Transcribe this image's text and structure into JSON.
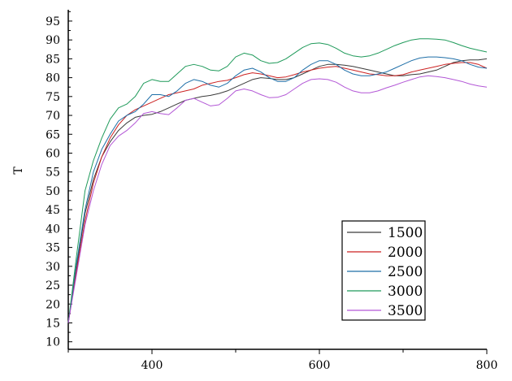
{
  "chart_data": {
    "type": "line",
    "title": "",
    "xlabel": "",
    "ylabel": "T",
    "xlim": [
      300,
      800
    ],
    "ylim": [
      8,
      98
    ],
    "x_ticks": [
      400,
      600,
      800
    ],
    "y_ticks": [
      10,
      15,
      20,
      25,
      30,
      35,
      40,
      45,
      50,
      55,
      60,
      65,
      70,
      75,
      80,
      85,
      90,
      95
    ],
    "grid": false,
    "legend_position": "bottom-right",
    "series": [
      {
        "name": "1500",
        "color": "#3a3a3a",
        "points": [
          [
            300,
            15
          ],
          [
            310,
            30
          ],
          [
            320,
            44
          ],
          [
            330,
            53
          ],
          [
            340,
            59
          ],
          [
            350,
            63
          ],
          [
            360,
            66
          ],
          [
            370,
            68
          ],
          [
            380,
            69.5
          ],
          [
            390,
            70
          ],
          [
            400,
            70.3
          ],
          [
            410,
            71
          ],
          [
            420,
            72
          ],
          [
            430,
            73
          ],
          [
            440,
            74
          ],
          [
            450,
            74.5
          ],
          [
            460,
            75
          ],
          [
            470,
            75.3
          ],
          [
            480,
            75.8
          ],
          [
            490,
            76.5
          ],
          [
            500,
            77.5
          ],
          [
            510,
            78.5
          ],
          [
            520,
            79.5
          ],
          [
            530,
            80
          ],
          [
            540,
            79.8
          ],
          [
            550,
            79.5
          ],
          [
            560,
            79.5
          ],
          [
            570,
            80
          ],
          [
            580,
            81
          ],
          [
            590,
            82
          ],
          [
            600,
            83
          ],
          [
            610,
            83.5
          ],
          [
            620,
            83.5
          ],
          [
            630,
            83.3
          ],
          [
            640,
            83
          ],
          [
            650,
            82.5
          ],
          [
            660,
            82
          ],
          [
            670,
            81.5
          ],
          [
            680,
            81
          ],
          [
            690,
            80.5
          ],
          [
            700,
            80.5
          ],
          [
            710,
            80.8
          ],
          [
            720,
            81
          ],
          [
            730,
            81.5
          ],
          [
            740,
            82
          ],
          [
            750,
            83
          ],
          [
            760,
            84
          ],
          [
            770,
            84.5
          ],
          [
            780,
            84.7
          ],
          [
            790,
            84.7
          ],
          [
            800,
            85
          ]
        ]
      },
      {
        "name": "2000",
        "color": "#cc2222",
        "points": [
          [
            300,
            15
          ],
          [
            310,
            29
          ],
          [
            320,
            42
          ],
          [
            330,
            52
          ],
          [
            340,
            59
          ],
          [
            350,
            64
          ],
          [
            360,
            67.5
          ],
          [
            370,
            70
          ],
          [
            380,
            71.5
          ],
          [
            390,
            72.5
          ],
          [
            400,
            73.5
          ],
          [
            410,
            74.5
          ],
          [
            420,
            75.5
          ],
          [
            430,
            76
          ],
          [
            440,
            76.5
          ],
          [
            450,
            77
          ],
          [
            460,
            78
          ],
          [
            470,
            78.5
          ],
          [
            480,
            79
          ],
          [
            490,
            79.3
          ],
          [
            500,
            80
          ],
          [
            510,
            80.8
          ],
          [
            520,
            81.3
          ],
          [
            530,
            81
          ],
          [
            540,
            80.5
          ],
          [
            550,
            80
          ],
          [
            560,
            80.2
          ],
          [
            570,
            80.8
          ],
          [
            580,
            81.5
          ],
          [
            590,
            82
          ],
          [
            600,
            82.5
          ],
          [
            610,
            82.8
          ],
          [
            620,
            83
          ],
          [
            630,
            82.5
          ],
          [
            640,
            82
          ],
          [
            650,
            81.5
          ],
          [
            660,
            81
          ],
          [
            670,
            80.8
          ],
          [
            680,
            80.5
          ],
          [
            690,
            80.5
          ],
          [
            700,
            80.8
          ],
          [
            710,
            81.5
          ],
          [
            720,
            82
          ],
          [
            730,
            82.5
          ],
          [
            740,
            83
          ],
          [
            750,
            83.5
          ],
          [
            760,
            83.8
          ],
          [
            770,
            84
          ],
          [
            780,
            84
          ],
          [
            790,
            83.5
          ],
          [
            800,
            82.5
          ]
        ]
      },
      {
        "name": "2500",
        "color": "#1f6fa8",
        "points": [
          [
            300,
            15
          ],
          [
            310,
            31
          ],
          [
            320,
            45
          ],
          [
            330,
            55
          ],
          [
            340,
            61
          ],
          [
            350,
            65
          ],
          [
            360,
            68.5
          ],
          [
            370,
            70
          ],
          [
            380,
            71
          ],
          [
            390,
            73
          ],
          [
            400,
            75.5
          ],
          [
            410,
            75.5
          ],
          [
            420,
            75
          ],
          [
            430,
            76.5
          ],
          [
            440,
            78.5
          ],
          [
            450,
            79.5
          ],
          [
            460,
            79
          ],
          [
            470,
            78
          ],
          [
            480,
            77.5
          ],
          [
            490,
            78.5
          ],
          [
            500,
            80.5
          ],
          [
            510,
            82
          ],
          [
            520,
            82.5
          ],
          [
            530,
            81.5
          ],
          [
            540,
            80
          ],
          [
            550,
            79
          ],
          [
            560,
            79
          ],
          [
            570,
            80
          ],
          [
            580,
            82
          ],
          [
            590,
            83.5
          ],
          [
            600,
            84.5
          ],
          [
            610,
            84.5
          ],
          [
            620,
            83.5
          ],
          [
            630,
            82
          ],
          [
            640,
            81
          ],
          [
            650,
            80.5
          ],
          [
            660,
            80.5
          ],
          [
            670,
            81
          ],
          [
            680,
            81.5
          ],
          [
            690,
            82.5
          ],
          [
            700,
            83.5
          ],
          [
            710,
            84.5
          ],
          [
            720,
            85.2
          ],
          [
            730,
            85.5
          ],
          [
            740,
            85.5
          ],
          [
            750,
            85.3
          ],
          [
            760,
            85
          ],
          [
            770,
            84.5
          ],
          [
            780,
            83.5
          ],
          [
            790,
            82.8
          ],
          [
            800,
            82.5
          ]
        ]
      },
      {
        "name": "3000",
        "color": "#1f9a5a",
        "points": [
          [
            300,
            15
          ],
          [
            310,
            33
          ],
          [
            320,
            50
          ],
          [
            330,
            58
          ],
          [
            340,
            64
          ],
          [
            350,
            69
          ],
          [
            360,
            72
          ],
          [
            370,
            73
          ],
          [
            380,
            75
          ],
          [
            390,
            78.5
          ],
          [
            400,
            79.5
          ],
          [
            410,
            79
          ],
          [
            420,
            79
          ],
          [
            430,
            81
          ],
          [
            440,
            83
          ],
          [
            450,
            83.5
          ],
          [
            460,
            83
          ],
          [
            470,
            82
          ],
          [
            480,
            81.8
          ],
          [
            490,
            83
          ],
          [
            500,
            85.5
          ],
          [
            510,
            86.5
          ],
          [
            520,
            86
          ],
          [
            530,
            84.5
          ],
          [
            540,
            83.8
          ],
          [
            550,
            84
          ],
          [
            560,
            85
          ],
          [
            570,
            86.5
          ],
          [
            580,
            88
          ],
          [
            590,
            89
          ],
          [
            600,
            89.2
          ],
          [
            610,
            88.8
          ],
          [
            620,
            87.8
          ],
          [
            630,
            86.5
          ],
          [
            640,
            85.8
          ],
          [
            650,
            85.5
          ],
          [
            660,
            85.8
          ],
          [
            670,
            86.5
          ],
          [
            680,
            87.5
          ],
          [
            690,
            88.5
          ],
          [
            700,
            89.3
          ],
          [
            710,
            90
          ],
          [
            720,
            90.3
          ],
          [
            730,
            90.3
          ],
          [
            740,
            90.2
          ],
          [
            750,
            90
          ],
          [
            760,
            89.3
          ],
          [
            770,
            88.5
          ],
          [
            780,
            87.8
          ],
          [
            790,
            87.3
          ],
          [
            800,
            86.8
          ]
        ]
      },
      {
        "name": "3500",
        "color": "#b357d6",
        "points": [
          [
            300,
            15
          ],
          [
            310,
            28
          ],
          [
            320,
            41
          ],
          [
            330,
            50
          ],
          [
            340,
            57
          ],
          [
            350,
            62
          ],
          [
            360,
            64.5
          ],
          [
            370,
            66
          ],
          [
            380,
            68
          ],
          [
            390,
            70.5
          ],
          [
            400,
            71
          ],
          [
            410,
            70.5
          ],
          [
            420,
            70.2
          ],
          [
            430,
            72
          ],
          [
            440,
            74
          ],
          [
            450,
            74.5
          ],
          [
            460,
            73.5
          ],
          [
            470,
            72.5
          ],
          [
            480,
            72.8
          ],
          [
            490,
            74.5
          ],
          [
            500,
            76.5
          ],
          [
            510,
            77
          ],
          [
            520,
            76.5
          ],
          [
            530,
            75.5
          ],
          [
            540,
            74.7
          ],
          [
            550,
            74.8
          ],
          [
            560,
            75.5
          ],
          [
            570,
            77
          ],
          [
            580,
            78.5
          ],
          [
            590,
            79.5
          ],
          [
            600,
            79.7
          ],
          [
            610,
            79.5
          ],
          [
            620,
            78.8
          ],
          [
            630,
            77.5
          ],
          [
            640,
            76.5
          ],
          [
            650,
            76
          ],
          [
            660,
            76
          ],
          [
            670,
            76.5
          ],
          [
            680,
            77.3
          ],
          [
            690,
            78
          ],
          [
            700,
            78.8
          ],
          [
            710,
            79.5
          ],
          [
            720,
            80.2
          ],
          [
            730,
            80.5
          ],
          [
            740,
            80.3
          ],
          [
            750,
            80
          ],
          [
            760,
            79.5
          ],
          [
            770,
            79
          ],
          [
            780,
            78.3
          ],
          [
            790,
            77.8
          ],
          [
            800,
            77.5
          ]
        ]
      }
    ]
  }
}
